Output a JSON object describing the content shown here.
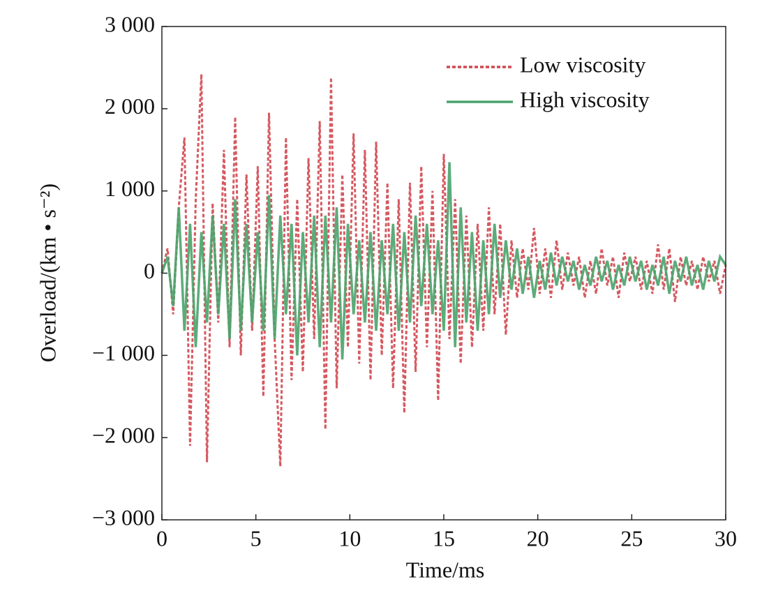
{
  "chart_data": {
    "type": "line",
    "x_label": "Time/ms",
    "y_label": "Overload/(km • s⁻²)",
    "x": [
      0,
      0.3,
      0.6,
      0.9,
      1.2,
      1.5,
      1.8,
      2.1,
      2.4,
      2.7,
      3,
      3.3,
      3.6,
      3.9,
      4.2,
      4.5,
      4.8,
      5.1,
      5.4,
      5.7,
      6,
      6.3,
      6.6,
      6.9,
      7.2,
      7.5,
      7.8,
      8.1,
      8.4,
      8.7,
      9,
      9.3,
      9.6,
      9.9,
      10.2,
      10.5,
      10.8,
      11.1,
      11.4,
      11.7,
      12,
      12.3,
      12.6,
      12.9,
      13.2,
      13.5,
      13.8,
      14.1,
      14.4,
      14.7,
      15,
      15.3,
      15.6,
      15.9,
      16.2,
      16.5,
      16.8,
      17.1,
      17.4,
      17.7,
      18,
      18.3,
      18.6,
      18.9,
      19.2,
      19.5,
      19.8,
      20.1,
      20.4,
      20.7,
      21,
      21.3,
      21.6,
      21.9,
      22.2,
      22.5,
      22.8,
      23.1,
      23.4,
      23.7,
      24,
      24.3,
      24.6,
      24.9,
      25.2,
      25.5,
      25.8,
      26.1,
      26.4,
      26.7,
      27,
      27.3,
      27.6,
      27.9,
      28.2,
      28.5,
      28.8,
      29.1,
      29.4,
      29.7,
      30
    ],
    "series": [
      {
        "name": "Low viscosity",
        "color": "#d0474f",
        "dashed": true,
        "values": [
          0,
          300,
          -500,
          800,
          1650,
          -2100,
          900,
          2420,
          -2300,
          850,
          -600,
          1500,
          -900,
          1900,
          -1000,
          1200,
          -700,
          1300,
          -1500,
          1950,
          -800,
          -2350,
          1650,
          -1300,
          900,
          -1200,
          1400,
          -800,
          1850,
          -1900,
          2380,
          -1400,
          1200,
          -900,
          1700,
          -1100,
          1500,
          -1300,
          1600,
          -1000,
          1100,
          -1400,
          900,
          -1700,
          1100,
          -1200,
          1300,
          -900,
          1000,
          -1550,
          1450,
          -800,
          900,
          -1100,
          700,
          -900,
          600,
          -700,
          800,
          -500,
          600,
          -750,
          400,
          -300,
          300,
          -200,
          550,
          -250,
          300,
          -300,
          400,
          -200,
          250,
          -150,
          200,
          -300,
          150,
          -250,
          300,
          -150,
          200,
          -300,
          250,
          -100,
          200,
          -200,
          150,
          -250,
          350,
          -200,
          300,
          -350,
          200,
          -150,
          150,
          -200,
          200,
          -100,
          150,
          -250,
          100
        ]
      },
      {
        "name": "High viscosity",
        "color": "#4aa36b",
        "dashed": false,
        "values": [
          0,
          200,
          -400,
          800,
          -700,
          600,
          -900,
          500,
          -600,
          700,
          -500,
          600,
          -800,
          900,
          -700,
          600,
          -600,
          500,
          -700,
          950,
          -800,
          700,
          -500,
          600,
          -1000,
          500,
          -600,
          700,
          -900,
          700,
          -600,
          800,
          -1050,
          600,
          -500,
          400,
          -600,
          500,
          -700,
          400,
          -500,
          600,
          -700,
          500,
          -600,
          700,
          -400,
          600,
          -500,
          400,
          -700,
          1350,
          -900,
          800,
          -600,
          500,
          -700,
          400,
          -500,
          600,
          -300,
          400,
          -200,
          300,
          -250,
          200,
          -300,
          150,
          -200,
          250,
          -150,
          200,
          -100,
          150,
          -200,
          100,
          -150,
          200,
          -100,
          150,
          -200,
          100,
          -150,
          200,
          -100,
          150,
          -200,
          100,
          -150,
          200,
          -250,
          150,
          -100,
          200,
          -150,
          100,
          -200,
          150,
          -100,
          200,
          100
        ]
      }
    ],
    "xlim": [
      0,
      30
    ],
    "xticks": [
      0,
      5,
      10,
      15,
      20,
      25,
      30
    ],
    "ylim": [
      -3000,
      3000
    ],
    "yticks": [
      {
        "value": -3000,
        "label": "−3 000"
      },
      {
        "value": -2000,
        "label": "−2 000"
      },
      {
        "value": -1000,
        "label": "−1 000"
      },
      0,
      {
        "value": 1000,
        "label": "1 000"
      },
      {
        "value": 2000,
        "label": "2 000"
      },
      {
        "value": 3000,
        "label": "3 000"
      }
    ],
    "legend": "upper right",
    "grid": false
  }
}
